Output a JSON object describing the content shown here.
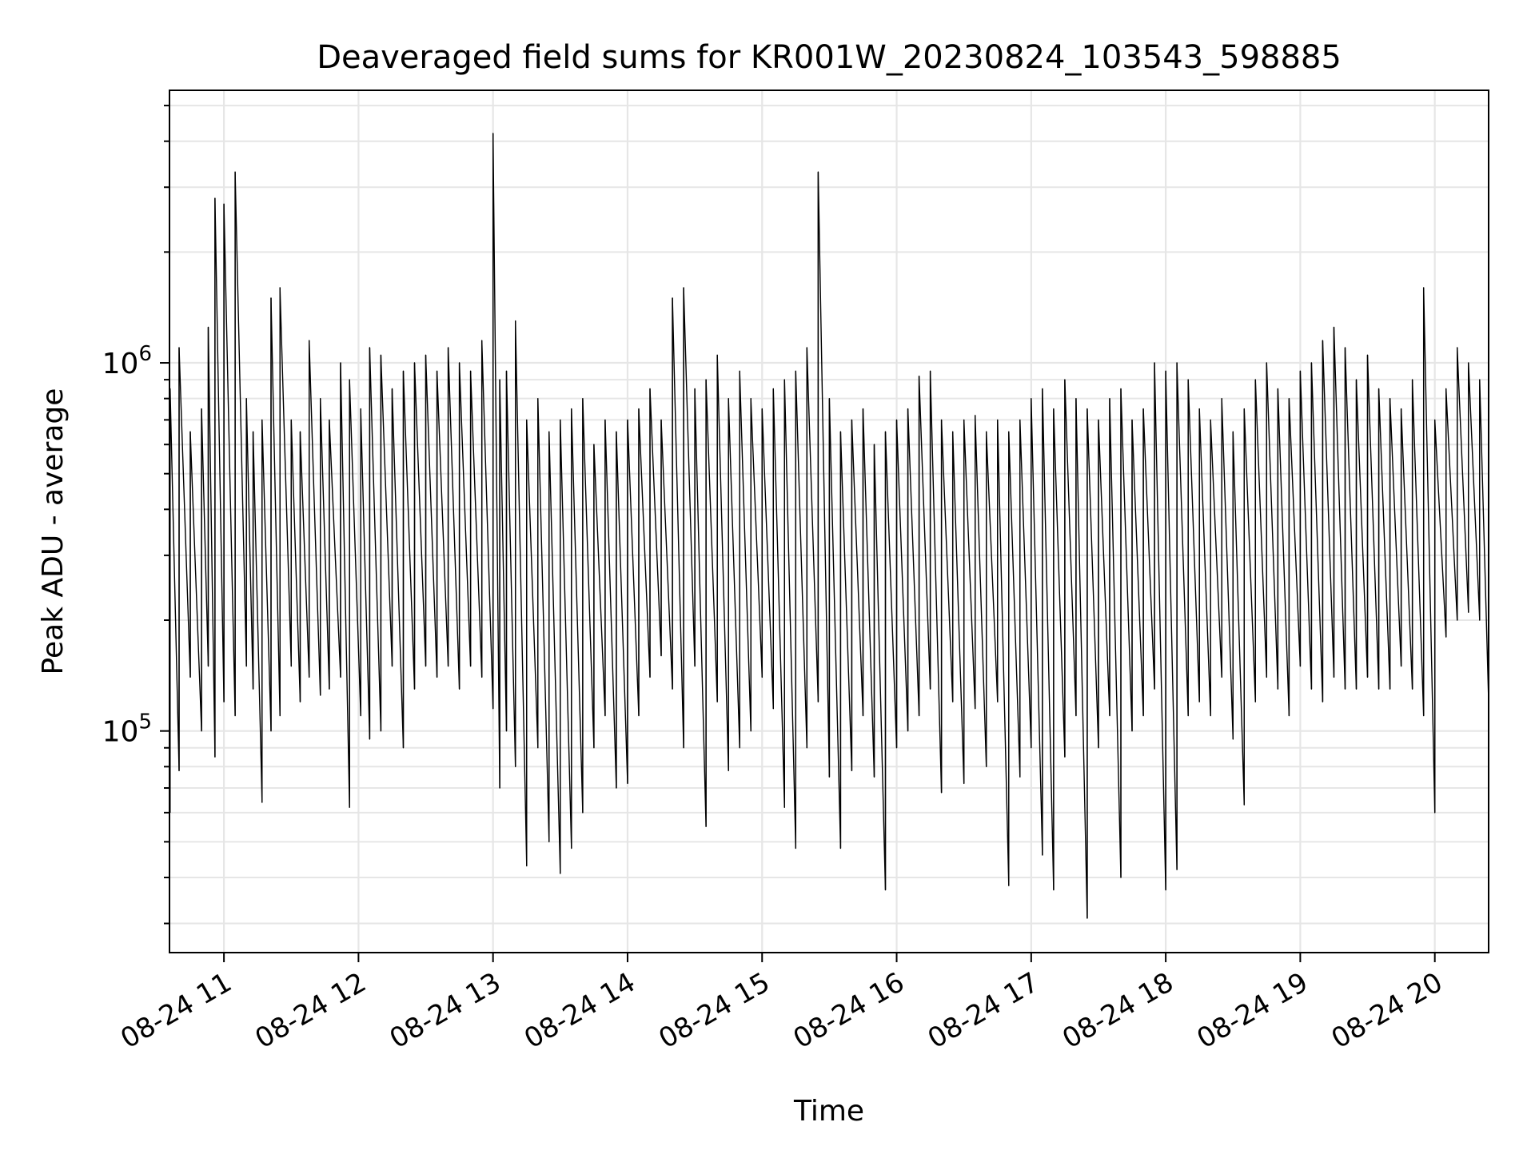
{
  "chart_data": {
    "type": "line",
    "title": "Deaveraged field sums for KR001W_20230824_103543_598885",
    "xlabel": "Time",
    "ylabel": "Peak ADU - average",
    "y_scale": "log",
    "ylim": [
      25000,
      5500000
    ],
    "xlim": [
      "2023-08-24 10:35:43",
      "2023-08-24 20:24"
    ],
    "grid": true,
    "line_color": "#000000",
    "grid_color": "#e6e6e6",
    "x_ticks": [
      {
        "value": "2023-08-24 11:00",
        "label": "08-24 11"
      },
      {
        "value": "2023-08-24 12:00",
        "label": "08-24 12"
      },
      {
        "value": "2023-08-24 13:00",
        "label": "08-24 13"
      },
      {
        "value": "2023-08-24 14:00",
        "label": "08-24 14"
      },
      {
        "value": "2023-08-24 15:00",
        "label": "08-24 15"
      },
      {
        "value": "2023-08-24 16:00",
        "label": "08-24 16"
      },
      {
        "value": "2023-08-24 17:00",
        "label": "08-24 17"
      },
      {
        "value": "2023-08-24 18:00",
        "label": "08-24 18"
      },
      {
        "value": "2023-08-24 19:00",
        "label": "08-24 19"
      },
      {
        "value": "2023-08-24 20:00",
        "label": "08-24 20"
      }
    ],
    "y_major_ticks": [
      {
        "value": 100000,
        "base": "10",
        "exp": "5"
      },
      {
        "value": 1000000,
        "base": "10",
        "exp": "6"
      }
    ],
    "series": [
      {
        "x": [
          "2023-08-24 10:36",
          "2023-08-24 10:40",
          "2023-08-24 10:45",
          "2023-08-24 10:50",
          "2023-08-24 10:53",
          "2023-08-24 10:56",
          "2023-08-24 11:00",
          "2023-08-24 11:05",
          "2023-08-24 11:10",
          "2023-08-24 11:13",
          "2023-08-24 11:17",
          "2023-08-24 11:21",
          "2023-08-24 11:25",
          "2023-08-24 11:30",
          "2023-08-24 11:34",
          "2023-08-24 11:38",
          "2023-08-24 11:43",
          "2023-08-24 11:47",
          "2023-08-24 11:52",
          "2023-08-24 11:56",
          "2023-08-24 12:01",
          "2023-08-24 12:05",
          "2023-08-24 12:10",
          "2023-08-24 12:15",
          "2023-08-24 12:20",
          "2023-08-24 12:25",
          "2023-08-24 12:30",
          "2023-08-24 12:35",
          "2023-08-24 12:40",
          "2023-08-24 12:45",
          "2023-08-24 12:50",
          "2023-08-24 12:55",
          "2023-08-24 13:00",
          "2023-08-24 13:03",
          "2023-08-24 13:06",
          "2023-08-24 13:10",
          "2023-08-24 13:15",
          "2023-08-24 13:20",
          "2023-08-24 13:25",
          "2023-08-24 13:30",
          "2023-08-24 13:35",
          "2023-08-24 13:40",
          "2023-08-24 13:45",
          "2023-08-24 13:50",
          "2023-08-24 13:55",
          "2023-08-24 14:00",
          "2023-08-24 14:05",
          "2023-08-24 14:10",
          "2023-08-24 14:15",
          "2023-08-24 14:20",
          "2023-08-24 14:25",
          "2023-08-24 14:30",
          "2023-08-24 14:35",
          "2023-08-24 14:40",
          "2023-08-24 14:45",
          "2023-08-24 14:50",
          "2023-08-24 14:55",
          "2023-08-24 15:00",
          "2023-08-24 15:05",
          "2023-08-24 15:10",
          "2023-08-24 15:15",
          "2023-08-24 15:20",
          "2023-08-24 15:25",
          "2023-08-24 15:30",
          "2023-08-24 15:35",
          "2023-08-24 15:40",
          "2023-08-24 15:45",
          "2023-08-24 15:50",
          "2023-08-24 15:55",
          "2023-08-24 16:00",
          "2023-08-24 16:05",
          "2023-08-24 16:10",
          "2023-08-24 16:15",
          "2023-08-24 16:20",
          "2023-08-24 16:25",
          "2023-08-24 16:30",
          "2023-08-24 16:35",
          "2023-08-24 16:40",
          "2023-08-24 16:45",
          "2023-08-24 16:50",
          "2023-08-24 16:55",
          "2023-08-24 17:00",
          "2023-08-24 17:05",
          "2023-08-24 17:10",
          "2023-08-24 17:15",
          "2023-08-24 17:20",
          "2023-08-24 17:25",
          "2023-08-24 17:30",
          "2023-08-24 17:35",
          "2023-08-24 17:40",
          "2023-08-24 17:45",
          "2023-08-24 17:50",
          "2023-08-24 17:55",
          "2023-08-24 18:00",
          "2023-08-24 18:05",
          "2023-08-24 18:10",
          "2023-08-24 18:15",
          "2023-08-24 18:20",
          "2023-08-24 18:25",
          "2023-08-24 18:30",
          "2023-08-24 18:35",
          "2023-08-24 18:40",
          "2023-08-24 18:45",
          "2023-08-24 18:50",
          "2023-08-24 18:55",
          "2023-08-24 19:00",
          "2023-08-24 19:05",
          "2023-08-24 19:10",
          "2023-08-24 19:15",
          "2023-08-24 19:20",
          "2023-08-24 19:25",
          "2023-08-24 19:30",
          "2023-08-24 19:35",
          "2023-08-24 19:40",
          "2023-08-24 19:45",
          "2023-08-24 19:50",
          "2023-08-24 19:55",
          "2023-08-24 20:00",
          "2023-08-24 20:05",
          "2023-08-24 20:10",
          "2023-08-24 20:15",
          "2023-08-24 20:20",
          "2023-08-24 20:24"
        ],
        "low": [
          60000,
          78000,
          140000,
          100000,
          150000,
          85000,
          120000,
          110000,
          150000,
          130000,
          64000,
          100000,
          110000,
          150000,
          120000,
          140000,
          125000,
          130000,
          140000,
          62000,
          110000,
          95000,
          100000,
          150000,
          90000,
          130000,
          150000,
          140000,
          150000,
          130000,
          150000,
          140000,
          115000,
          70000,
          100000,
          80000,
          43000,
          90000,
          50000,
          41000,
          48000,
          60000,
          90000,
          110000,
          70000,
          72000,
          110000,
          140000,
          160000,
          130000,
          90000,
          150000,
          55000,
          120000,
          78000,
          90000,
          100000,
          140000,
          115000,
          62000,
          48000,
          90000,
          120000,
          75000,
          48000,
          78000,
          110000,
          75000,
          37000,
          90000,
          100000,
          110000,
          130000,
          68000,
          120000,
          72000,
          115000,
          80000,
          120000,
          38000,
          75000,
          90000,
          46000,
          37000,
          85000,
          110000,
          31000,
          90000,
          110000,
          40000,
          100000,
          110000,
          130000,
          37000,
          42000,
          110000,
          120000,
          110000,
          140000,
          95000,
          63000,
          120000,
          140000,
          130000,
          110000,
          150000,
          130000,
          120000,
          140000,
          130000,
          130000,
          140000,
          130000,
          130000,
          150000,
          130000,
          110000,
          60000,
          180000,
          200000,
          210000,
          200000,
          120000
        ],
        "high": [
          850000,
          1100000,
          650000,
          750000,
          1250000,
          2800000,
          2700000,
          3300000,
          800000,
          650000,
          700000,
          1500000,
          1600000,
          700000,
          650000,
          1150000,
          800000,
          700000,
          1000000,
          900000,
          750000,
          1100000,
          1050000,
          850000,
          950000,
          1000000,
          1050000,
          950000,
          1100000,
          1000000,
          950000,
          1150000,
          4200000,
          900000,
          950000,
          1300000,
          700000,
          800000,
          650000,
          700000,
          750000,
          800000,
          600000,
          700000,
          650000,
          700000,
          750000,
          850000,
          700000,
          1500000,
          1600000,
          850000,
          900000,
          1050000,
          800000,
          950000,
          800000,
          750000,
          850000,
          900000,
          950000,
          1100000,
          3300000,
          800000,
          650000,
          700000,
          750000,
          600000,
          650000,
          700000,
          750000,
          920000,
          950000,
          700000,
          650000,
          700000,
          720000,
          650000,
          700000,
          650000,
          700000,
          800000,
          850000,
          750000,
          900000,
          800000,
          750000,
          700000,
          800000,
          850000,
          700000,
          750000,
          1000000,
          950000,
          1000000,
          900000,
          750000,
          700000,
          800000,
          650000,
          750000,
          900000,
          1000000,
          850000,
          800000,
          950000,
          1000000,
          1150000,
          1250000,
          1100000,
          900000,
          1050000,
          850000,
          800000,
          750000,
          900000,
          1600000,
          700000,
          850000,
          1100000,
          1000000,
          900000,
          850000
        ]
      }
    ]
  }
}
